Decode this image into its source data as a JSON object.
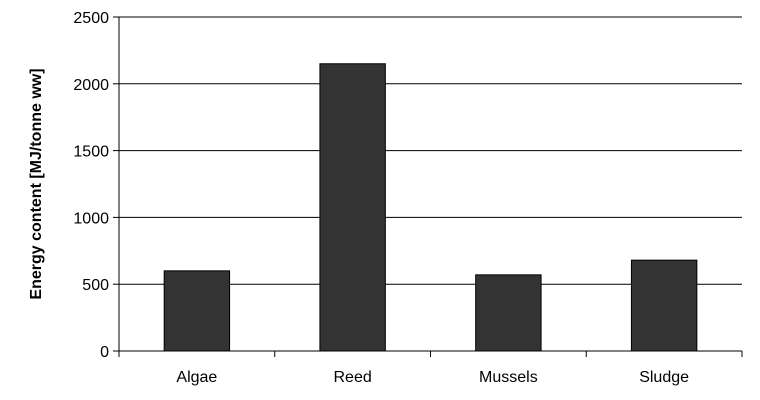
{
  "chart_data": {
    "type": "bar",
    "title": "",
    "xlabel": "",
    "ylabel": "Energy content [MJ/tonne ww]",
    "categories": [
      "Algae",
      "Reed",
      "Mussels",
      "Sludge"
    ],
    "values": [
      600,
      2150,
      570,
      680
    ],
    "ylim": [
      0,
      2500
    ],
    "yticks": [
      0,
      500,
      1000,
      1500,
      2000,
      2500
    ],
    "grid": true,
    "legend": "none",
    "colors": {
      "bar_fill": "#333333",
      "bar_stroke": "#000000",
      "grid": "#000000",
      "axis": "#000000"
    }
  }
}
